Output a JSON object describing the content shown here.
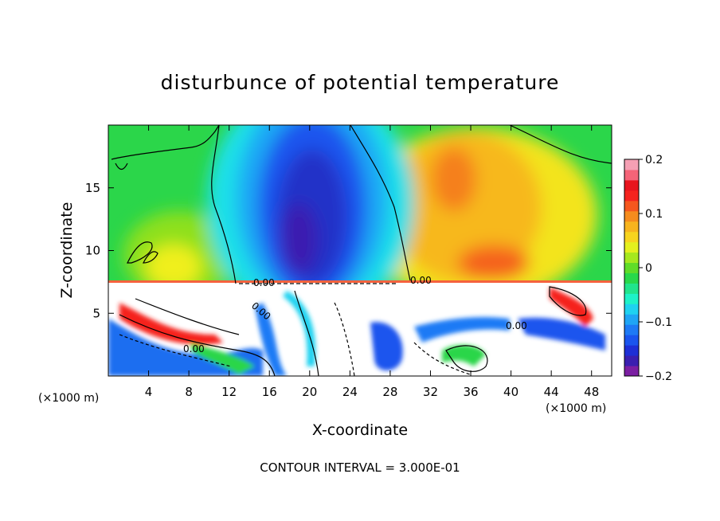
{
  "chart_data": {
    "type": "heatmap",
    "title": "disturbunce of potential temperature",
    "xlabel": "X-coordinate",
    "ylabel": "Z-coordinate",
    "x_unit": "(×1000 m)",
    "x_unit_right": "(×1000 m)",
    "xlim": [
      0,
      50
    ],
    "ylim": [
      0,
      20
    ],
    "x_ticks": [
      4,
      8,
      12,
      16,
      20,
      24,
      28,
      32,
      36,
      40,
      44,
      48
    ],
    "x_tick_labels": [
      "4",
      "8",
      "12",
      "16",
      "20",
      "24",
      "28",
      "32",
      "36",
      "40",
      "44",
      "48"
    ],
    "y_ticks": [
      5,
      10,
      15
    ],
    "y_tick_labels": [
      "5",
      "10",
      "15"
    ],
    "colorbar": {
      "range": [
        -0.2,
        0.2
      ],
      "tick_values": [
        0.2,
        0.1,
        0,
        -0.1,
        -0.2
      ],
      "tick_labels": [
        "0.2",
        "0.1",
        "0",
        "−0.1",
        "−0.2"
      ],
      "colors": [
        "#7b1fa2",
        "#3a1fb0",
        "#1e2fd6",
        "#1a55ee",
        "#1e7af5",
        "#1fa5f5",
        "#1fd2f0",
        "#1ef2c8",
        "#21e48c",
        "#29d84a",
        "#60dc28",
        "#a6e81e",
        "#e4f01e",
        "#f7d41e",
        "#f7b41e",
        "#f58c1e",
        "#f5571e",
        "#f5231e",
        "#e8141e",
        "#f56478",
        "#f5a0b4"
      ]
    },
    "contour_labels": [
      "0.00",
      "0.00",
      "0.00",
      "0.00",
      "0.00"
    ],
    "contour_interval_text": "CONTOUR INTERVAL = 3.000E-01",
    "grid": false,
    "legend": "colorbar-right"
  }
}
